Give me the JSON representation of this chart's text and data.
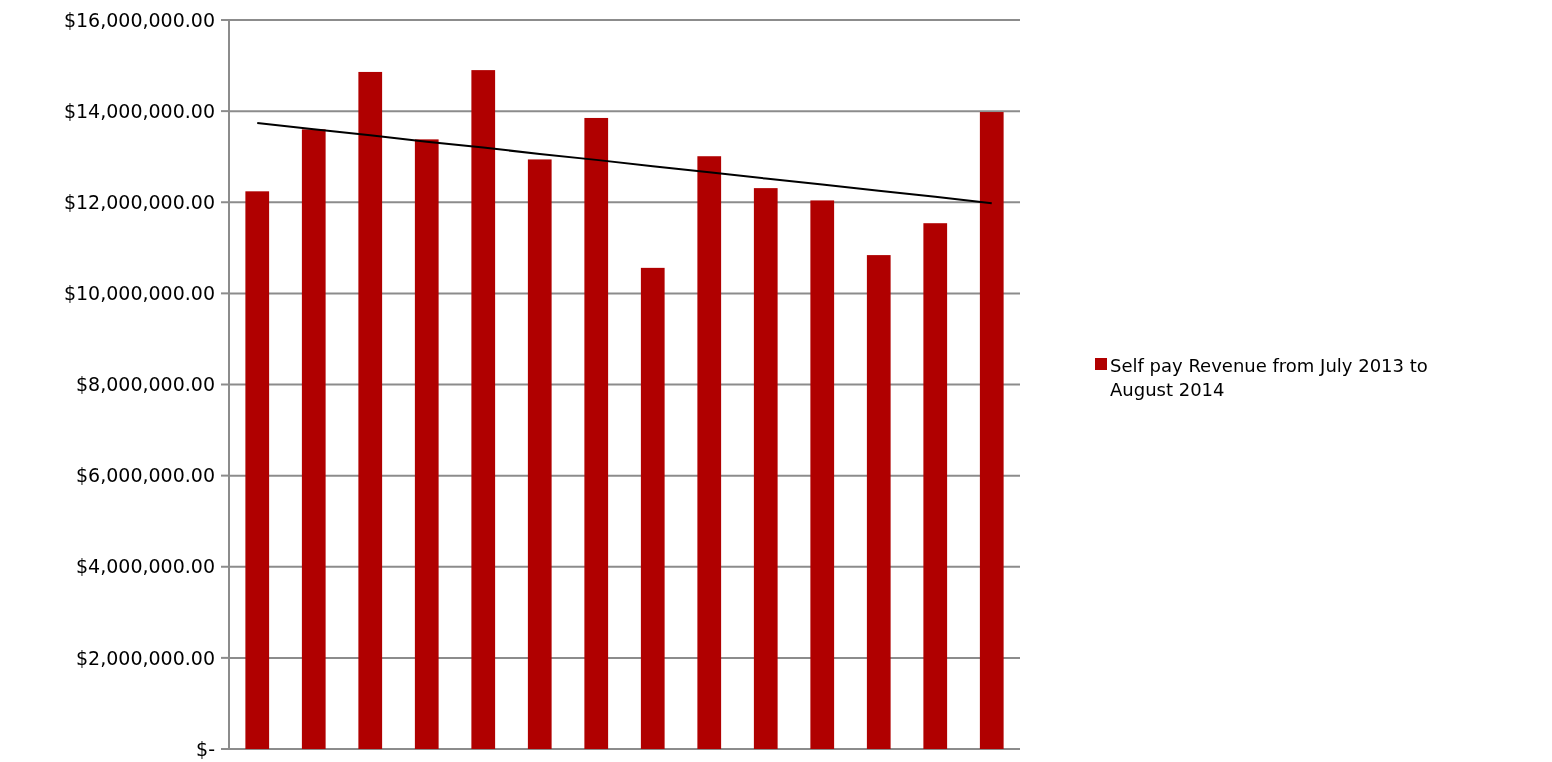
{
  "chart_data": {
    "type": "bar",
    "categories": [
      null,
      null,
      null,
      null,
      null,
      null,
      null,
      null,
      null,
      null,
      null,
      null,
      null,
      null
    ],
    "series": [
      {
        "name": "Self pay Revenue from July 2013 to August 2014",
        "color": "#b00000",
        "values": [
          12240000,
          13600000,
          14860000,
          13380000,
          14900000,
          12940000,
          13850000,
          10560000,
          13010000,
          12310000,
          12040000,
          10840000,
          11540000,
          13980000
        ]
      },
      {
        "type": "line",
        "color": "#000000",
        "values": [
          13740000,
          13600000,
          13470000,
          13330000,
          13200000,
          13060000,
          12930000,
          12790000,
          12660000,
          12520000,
          12390000,
          12250000,
          12120000,
          11980000
        ]
      }
    ],
    "ylim": [
      0,
      16000000
    ],
    "yticks": [
      {
        "value": 0,
        "label": "$-"
      },
      {
        "value": 2000000,
        "label": "$2,000,000.00"
      },
      {
        "value": 4000000,
        "label": "$4,000,000.00"
      },
      {
        "value": 6000000,
        "label": "$6,000,000.00"
      },
      {
        "value": 8000000,
        "label": "$8,000,000.00"
      },
      {
        "value": 10000000,
        "label": "$10,000,000.00"
      },
      {
        "value": 12000000,
        "label": "$12,000,000.00"
      },
      {
        "value": 14000000,
        "label": "$14,000,000.00"
      },
      {
        "value": 16000000,
        "label": "$16,000,000.00"
      }
    ],
    "grid": "y",
    "legend": "right",
    "marker": "none",
    "line_style": "solid"
  }
}
